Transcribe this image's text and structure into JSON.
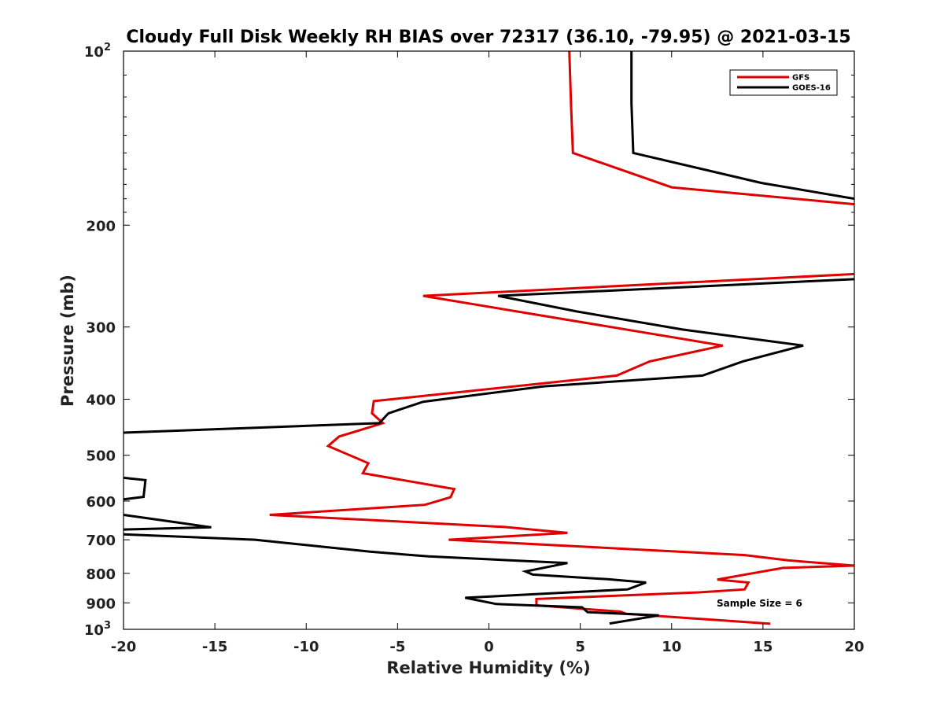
{
  "chart_data": {
    "type": "line",
    "title": "Cloudy Full Disk Weekly RH BIAS over 72317 (36.10, -79.95) @ 2021-03-15",
    "xlabel": "Relative Humidity (%)",
    "ylabel": "Pressure (mb)",
    "xlim": [
      -20,
      20
    ],
    "ylim": [
      100,
      1000
    ],
    "y_scale": "log",
    "y_reversed": true,
    "x_ticks": [
      "-20",
      "-15",
      "-10",
      "-5",
      "0",
      "5",
      "10",
      "15",
      "20"
    ],
    "y_ticks": [
      {
        "value": 100,
        "base": "10",
        "exp": "2"
      },
      {
        "value": 200,
        "base": "200",
        "exp": ""
      },
      {
        "value": 300,
        "base": "300",
        "exp": ""
      },
      {
        "value": 400,
        "base": "400",
        "exp": ""
      },
      {
        "value": 500,
        "base": "500",
        "exp": ""
      },
      {
        "value": 600,
        "base": "600",
        "exp": ""
      },
      {
        "value": 700,
        "base": "700",
        "exp": ""
      },
      {
        "value": 800,
        "base": "800",
        "exp": ""
      },
      {
        "value": 900,
        "base": "900",
        "exp": ""
      },
      {
        "value": 1000,
        "base": "10",
        "exp": "3"
      }
    ],
    "legend_position": "top-right",
    "annotation": "Sample Size = 6",
    "series": [
      {
        "name": "GFS",
        "color": "#e00000",
        "points": [
          [
            4.4,
            100
          ],
          [
            4.5,
            125
          ],
          [
            4.6,
            150
          ],
          [
            10,
            172
          ],
          [
            20,
            184
          ],
          [
            null,
            200
          ],
          [
            20,
            243
          ],
          [
            -3.6,
            265
          ],
          [
            12.8,
            323
          ],
          [
            8.8,
            344
          ],
          [
            7.0,
            364
          ],
          [
            -6.3,
            403
          ],
          [
            -6.4,
            423
          ],
          [
            -5.8,
            440
          ],
          [
            -8.2,
            464
          ],
          [
            -8.8,
            482
          ],
          [
            -6.6,
            516
          ],
          [
            -6.9,
            537
          ],
          [
            -1.9,
            572
          ],
          [
            -2.1,
            591
          ],
          [
            -3.5,
            609
          ],
          [
            -12.0,
            634
          ],
          [
            0.8,
            665
          ],
          [
            4.3,
            681
          ],
          [
            -2.2,
            700
          ],
          [
            8.3,
            728
          ],
          [
            14.0,
            744
          ],
          [
            16.4,
            760
          ],
          [
            20,
            776
          ],
          [
            16.1,
            783
          ],
          [
            12.5,
            820
          ],
          [
            14.2,
            830
          ],
          [
            14.0,
            853
          ],
          [
            11.5,
            863
          ],
          [
            2.6,
            886
          ],
          [
            2.6,
            909
          ],
          [
            7.2,
            932
          ],
          [
            7.5,
            940
          ],
          [
            15.4,
            978
          ]
        ]
      },
      {
        "name": "GOES-16",
        "color": "#000000",
        "points": [
          [
            7.8,
            100
          ],
          [
            7.8,
            123
          ],
          [
            7.9,
            150
          ],
          [
            14.9,
            169
          ],
          [
            20,
            180
          ],
          [
            null,
            200
          ],
          [
            20,
            248
          ],
          [
            0.5,
            265
          ],
          [
            4.8,
            282
          ],
          [
            10.6,
            303
          ],
          [
            17.2,
            323
          ],
          [
            13.9,
            344
          ],
          [
            11.7,
            364
          ],
          [
            3.0,
            380
          ],
          [
            -3.6,
            404
          ],
          [
            -5.5,
            423
          ],
          [
            -6.0,
            440
          ],
          [
            -20,
            457
          ],
          [
            null,
            480
          ],
          [
            -20,
            547
          ],
          [
            -18.8,
            552
          ],
          [
            -18.9,
            590
          ],
          [
            -20,
            596
          ],
          [
            null,
            620
          ],
          [
            -20,
            634
          ],
          [
            -17.4,
            651
          ],
          [
            -15.2,
            666
          ],
          [
            -20,
            672
          ],
          [
            null,
            685
          ],
          [
            -20,
            685
          ],
          [
            -12.8,
            700
          ],
          [
            -6.5,
            734
          ],
          [
            -3.3,
            748
          ],
          [
            4.3,
            768
          ],
          [
            2.0,
            794
          ],
          [
            2.4,
            804
          ],
          [
            6.5,
            819
          ],
          [
            8.6,
            830
          ],
          [
            7.6,
            853
          ],
          [
            -1.3,
            882
          ],
          [
            0.4,
            904
          ],
          [
            5.1,
            916
          ],
          [
            5.4,
            934
          ],
          [
            9.3,
            946
          ],
          [
            6.6,
            977
          ]
        ]
      }
    ]
  }
}
